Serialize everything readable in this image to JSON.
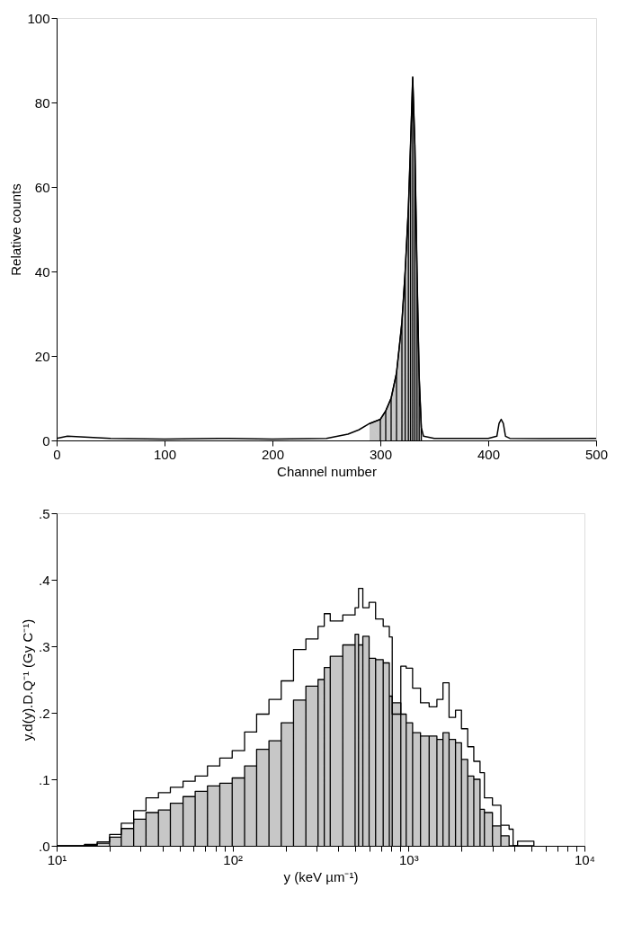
{
  "chart_data": [
    {
      "type": "line",
      "xlabel": "Channel number",
      "ylabel": "Relative counts",
      "xlim": [
        0,
        500
      ],
      "ylim": [
        0,
        100
      ],
      "xticks": [
        0,
        100,
        200,
        300,
        400,
        500
      ],
      "yticks": [
        0,
        20,
        40,
        60,
        80,
        100
      ],
      "grid": false,
      "series": [
        {
          "type": "line",
          "color": "#000000",
          "x": [
            0,
            10,
            50,
            100,
            150,
            200,
            250,
            270,
            280,
            290,
            300,
            305,
            310,
            315,
            320,
            323,
            326,
            328,
            330,
            332,
            334,
            336,
            338,
            340,
            350,
            400,
            408,
            410,
            412,
            414,
            416,
            420,
            450,
            500
          ],
          "values": [
            0.5,
            1,
            0.5,
            0.3,
            0.5,
            0.3,
            0.5,
            1.5,
            2.5,
            4,
            5,
            7,
            10,
            16,
            28,
            40,
            55,
            70,
            86,
            70,
            40,
            15,
            3,
            1,
            0.5,
            0.5,
            1,
            4,
            5,
            4,
            1,
            0.5,
            0.4,
            0.5
          ]
        },
        {
          "type": "area",
          "color": "#000000",
          "x": [
            290,
            300,
            305,
            310,
            315,
            320,
            323,
            326,
            328,
            330,
            332,
            334,
            336,
            338
          ],
          "values": [
            4,
            5,
            7,
            10,
            16,
            28,
            40,
            55,
            70,
            86,
            70,
            40,
            15,
            3
          ]
        }
      ]
    },
    {
      "type": "step",
      "xlabel": "y (keV µm⁻¹)",
      "ylabel": "y.d(y).D.Q⁻¹ (Gy C⁻¹)",
      "log": "x",
      "xlim": [
        10,
        10000
      ],
      "ylim": [
        0,
        0.5
      ],
      "grid": false,
      "xticks": [
        {
          "value": 10,
          "label": "10¹"
        },
        {
          "value": 20,
          "label": null
        },
        {
          "value": 30,
          "label": null
        },
        {
          "value": 40,
          "label": null
        },
        {
          "value": 50,
          "label": null
        },
        {
          "value": 60,
          "label": null
        },
        {
          "value": 70,
          "label": null
        },
        {
          "value": 80,
          "label": null
        },
        {
          "value": 90,
          "label": null
        },
        {
          "value": 100,
          "label": "10²"
        },
        {
          "value": 200,
          "label": null
        },
        {
          "value": 300,
          "label": null
        },
        {
          "value": 400,
          "label": null
        },
        {
          "value": 500,
          "label": null
        },
        {
          "value": 600,
          "label": null
        },
        {
          "value": 700,
          "label": null
        },
        {
          "value": 800,
          "label": null
        },
        {
          "value": 900,
          "label": null
        },
        {
          "value": 1000,
          "label": "10³"
        },
        {
          "value": 2000,
          "label": null
        },
        {
          "value": 3000,
          "label": null
        },
        {
          "value": 4000,
          "label": null
        },
        {
          "value": 5000,
          "label": null
        },
        {
          "value": 6000,
          "label": null
        },
        {
          "value": 7000,
          "label": null
        },
        {
          "value": 8000,
          "label": null
        },
        {
          "value": 9000,
          "label": null
        },
        {
          "value": 10000,
          "label": "10⁴"
        }
      ],
      "yticks": [
        {
          "value": 0,
          "label": ".0"
        },
        {
          "value": 0.1,
          "label": ".1"
        },
        {
          "value": 0.2,
          "label": ".2"
        },
        {
          "value": 0.3,
          "label": ".3"
        },
        {
          "value": 0.4,
          "label": ".4"
        },
        {
          "value": 0.5,
          "label": ".5"
        }
      ],
      "x": [
        10,
        14.4,
        17,
        20,
        23.3,
        27.4,
        32.2,
        37.9,
        44.3,
        52.3,
        61.3,
        72,
        84.6,
        99.5,
        117,
        137,
        161,
        189,
        222,
        261,
        306,
        332,
        359,
        423,
        497,
        520,
        550,
        597,
        650,
        718,
        778,
        808,
        904,
        970,
        1055,
        1170,
        1310,
        1450,
        1570,
        1700,
        1850,
        2000,
        2170,
        2350,
        2550,
        2700,
        3000,
        3350,
        3730,
        3930,
        4170,
        4640,
        5160
      ],
      "series": [
        {
          "type": "step",
          "color": "#000000",
          "values": [
            0,
            0.002,
            0.006,
            0.017,
            0.034,
            0.053,
            0.072,
            0.08,
            0.088,
            0.097,
            0.105,
            0.12,
            0.132,
            0.143,
            0.171,
            0.198,
            0.22,
            0.248,
            0.295,
            0.311,
            0.33,
            0.349,
            0.338,
            0.347,
            0.358,
            0.387,
            0.358,
            0.366,
            0.341,
            0.33,
            0.314,
            0.198,
            0.27,
            0.267,
            0.237,
            0.215,
            0.209,
            0.22,
            0.245,
            0.193,
            0.204,
            0.176,
            0.149,
            0.127,
            0.11,
            0.072,
            0.061,
            0.031,
            0.025,
            0,
            0.007,
            0.007,
            0
          ]
        },
        {
          "type": "area",
          "color": "#000000",
          "values": [
            0,
            0.001,
            0.004,
            0.013,
            0.026,
            0.04,
            0.05,
            0.054,
            0.064,
            0.074,
            0.082,
            0.09,
            0.094,
            0.102,
            0.12,
            0.145,
            0.158,
            0.185,
            0.219,
            0.24,
            0.25,
            0.268,
            0.285,
            0.302,
            0.318,
            0.302,
            0.315,
            0.282,
            0.28,
            0.275,
            0.225,
            0.215,
            0.198,
            0.185,
            0.17,
            0.165,
            0.165,
            0.16,
            0.17,
            0.16,
            0.155,
            0.13,
            0.105,
            0.1,
            0.055,
            0.05,
            0.03,
            0.015,
            0,
            0,
            0,
            0,
            0
          ]
        }
      ]
    }
  ]
}
